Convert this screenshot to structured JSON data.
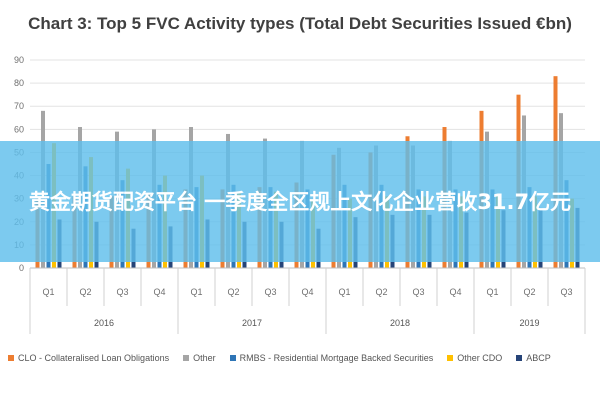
{
  "chart_data": {
    "type": "bar",
    "title": "Chart 3: Top 5 FVC Activity types (Total Debt Securities Issued €bn)",
    "ylim": [
      0,
      90
    ],
    "yticks": [
      0,
      10,
      20,
      30,
      40,
      50,
      60,
      70,
      80,
      90
    ],
    "grid": true,
    "legend_position": "bottom",
    "categories": [
      "Q1",
      "Q2",
      "Q3",
      "Q4",
      "Q1",
      "Q2",
      "Q3",
      "Q4",
      "Q1",
      "Q2",
      "Q3",
      "Q4",
      "Q1",
      "Q2",
      "Q3"
    ],
    "groups": [
      {
        "label": "2016",
        "count": 4
      },
      {
        "label": "2017",
        "count": 4
      },
      {
        "label": "2018",
        "count": 4
      },
      {
        "label": "2019",
        "count": 3
      }
    ],
    "series": [
      {
        "name": "CLO - Collateralised Loan Obligations",
        "color": "#ed7d31",
        "values": [
          30,
          31,
          31,
          32,
          34,
          34,
          35,
          37,
          49,
          50,
          57,
          61,
          68,
          75,
          83
        ]
      },
      {
        "name": "Other",
        "color": "#a5a5a5",
        "values": [
          68,
          61,
          59,
          60,
          61,
          58,
          56,
          55,
          52,
          53,
          53,
          55,
          59,
          66,
          67
        ]
      },
      {
        "name": "RMBS - Residential Mortgage Backed Securities",
        "color": "#2e75b6",
        "values": [
          45,
          44,
          38,
          36,
          35,
          36,
          35,
          34,
          36,
          36,
          34,
          34,
          34,
          35,
          38
        ]
      },
      {
        "name": "Other CDO",
        "color": "#ffc000",
        "values": [
          54,
          48,
          43,
          40,
          40,
          33,
          33,
          29,
          30,
          31,
          31,
          31,
          31,
          31,
          30
        ]
      },
      {
        "name": "ABCP",
        "color": "#264478",
        "values": [
          21,
          20,
          17,
          18,
          21,
          20,
          20,
          17,
          22,
          23,
          23,
          24,
          25,
          26,
          26
        ]
      }
    ]
  },
  "banner": {
    "text": "黄金期货配资平台 一季度全区规上文化企业营收31.7亿元"
  }
}
